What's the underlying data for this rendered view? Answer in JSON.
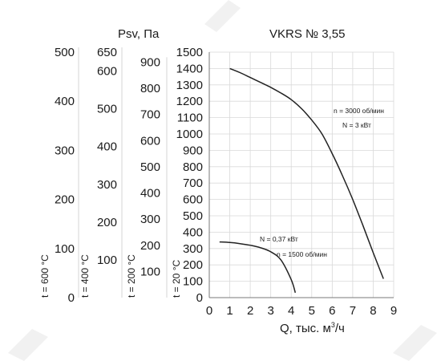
{
  "chart_data": {
    "type": "line",
    "title": "VKRS № 3,55",
    "pressure_label": "Psv, Па",
    "xlabel": "Q, тыс. м³/ч",
    "xlim": [
      0,
      9
    ],
    "x_ticks": [
      "0",
      "1",
      "2",
      "3",
      "4",
      "5",
      "6",
      "7",
      "8",
      "9"
    ],
    "grid": true,
    "pressure_scales": [
      {
        "label": "t = 20 °C",
        "ylim": [
          0,
          1500
        ],
        "ticks": [
          "0",
          "100",
          "200",
          "300",
          "400",
          "500",
          "600",
          "700",
          "800",
          "900",
          "1000",
          "1100",
          "1200",
          "1300",
          "1400",
          "1500"
        ]
      },
      {
        "label": "t = 200 °C",
        "ylim": [
          0,
          938
        ],
        "ticks": [
          "100",
          "200",
          "300",
          "400",
          "500",
          "600",
          "700",
          "800",
          "900"
        ]
      },
      {
        "label": "t = 400 °C",
        "ylim": [
          0,
          650
        ],
        "ticks": [
          "100",
          "200",
          "300",
          "400",
          "500",
          "600",
          "650"
        ]
      },
      {
        "label": "t = 600 °C",
        "ylim": [
          0,
          500
        ],
        "ticks": [
          "0",
          "100",
          "200",
          "300",
          "400",
          "500"
        ]
      }
    ],
    "series": [
      {
        "annotations": [
          "n = 3000 об/мин",
          "N = 3 кВт"
        ],
        "x": [
          1.0,
          1.5,
          2.0,
          2.5,
          3.0,
          3.5,
          4.0,
          4.5,
          5.0,
          5.5,
          6.0,
          6.5,
          7.0,
          7.5,
          8.0,
          8.5
        ],
        "y": [
          1400,
          1375,
          1345,
          1315,
          1285,
          1250,
          1210,
          1155,
          1085,
          1000,
          880,
          745,
          600,
          440,
          275,
          115
        ]
      },
      {
        "annotations": [
          "N = 0,37 кВт",
          "n = 1500 об/мин"
        ],
        "x": [
          0.5,
          1.0,
          1.5,
          2.0,
          2.5,
          3.0,
          3.5,
          4.0,
          4.2
        ],
        "y": [
          340,
          337,
          330,
          320,
          305,
          280,
          230,
          110,
          30
        ]
      }
    ]
  }
}
